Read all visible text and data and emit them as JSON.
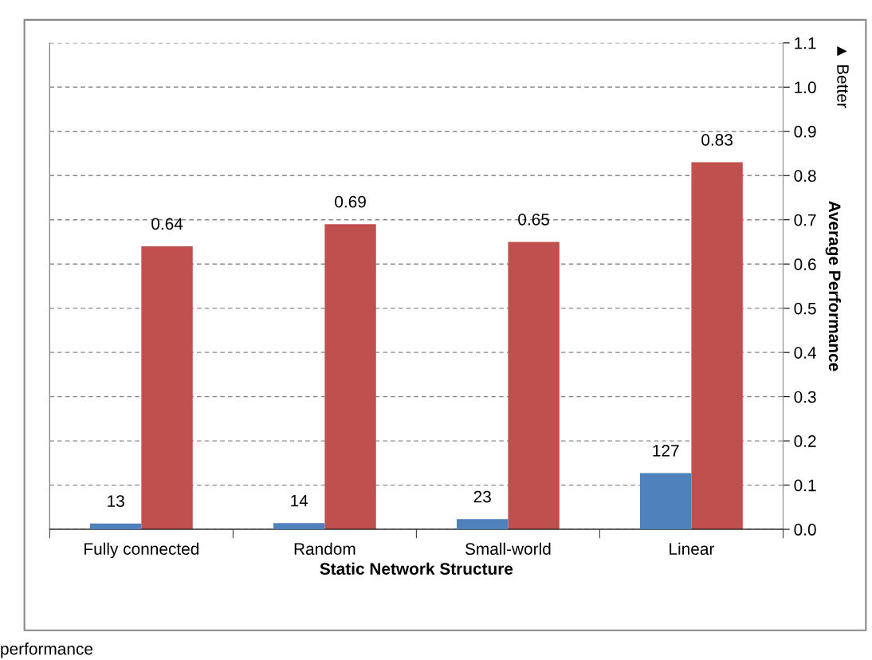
{
  "chart_data": {
    "type": "bar",
    "xlabel": "Static Network Structure",
    "ylabel": "Average Performance",
    "categories": [
      "Fully connected",
      "Random",
      "Small-world",
      "Linear"
    ],
    "series": [
      {
        "color": "#4f81bd",
        "values": [
          13,
          14,
          23,
          127
        ],
        "axis": "y2"
      },
      {
        "color": "#c0504d",
        "values": [
          0.64,
          0.69,
          0.65,
          0.83
        ]
      }
    ],
    "ylim": [
      0,
      1.1
    ],
    "yticks": [
      {
        "value": 0,
        "label": "0.0"
      },
      0.1,
      0.2,
      0.3,
      0.4,
      0.5,
      0.6,
      0.7,
      0.8,
      0.9,
      {
        "value": 1,
        "label": "1.0"
      },
      1.1
    ],
    "y2lim": [
      0,
      1100
    ],
    "tick_labels": "xy",
    "data_labels": true,
    "grid": "y",
    "legend": false,
    "annotations": [
      "▲ Better",
      "performance"
    ]
  }
}
